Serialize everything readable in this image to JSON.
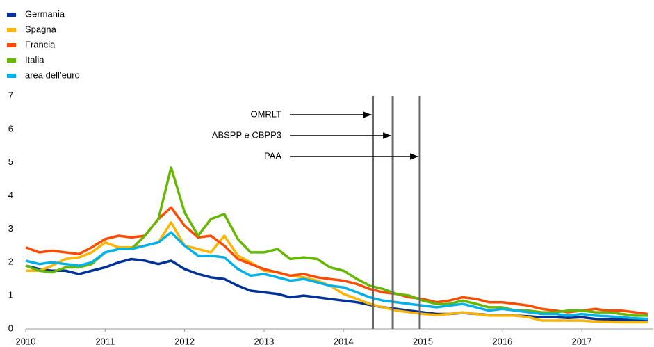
{
  "chart_data": {
    "type": "line",
    "x": [
      2010,
      2010.17,
      2010.33,
      2010.5,
      2010.67,
      2010.83,
      2011,
      2011.17,
      2011.33,
      2011.5,
      2011.67,
      2011.83,
      2012,
      2012.17,
      2012.33,
      2012.5,
      2012.67,
      2012.83,
      2013,
      2013.17,
      2013.33,
      2013.5,
      2013.67,
      2013.83,
      2014,
      2014.17,
      2014.33,
      2014.5,
      2014.67,
      2014.83,
      2015,
      2015.17,
      2015.33,
      2015.5,
      2015.67,
      2015.83,
      2016,
      2016.17,
      2016.33,
      2016.5,
      2016.67,
      2016.83,
      2017,
      2017.17,
      2017.33,
      2017.5,
      2017.67,
      2017.83
    ],
    "series": [
      {
        "name": "Germania",
        "color": "#003299",
        "values": [
          1.9,
          1.8,
          1.75,
          1.75,
          1.65,
          1.75,
          1.85,
          2.0,
          2.1,
          2.05,
          1.95,
          2.05,
          1.8,
          1.65,
          1.55,
          1.5,
          1.3,
          1.15,
          1.1,
          1.05,
          0.95,
          1.0,
          0.95,
          0.9,
          0.85,
          0.8,
          0.72,
          0.65,
          0.6,
          0.55,
          0.5,
          0.45,
          0.45,
          0.48,
          0.45,
          0.42,
          0.42,
          0.4,
          0.38,
          0.35,
          0.35,
          0.33,
          0.35,
          0.3,
          0.28,
          0.28,
          0.25,
          0.25
        ]
      },
      {
        "name": "Spagna",
        "color": "#ffb400",
        "values": [
          1.75,
          1.75,
          1.9,
          2.1,
          2.15,
          2.3,
          2.6,
          2.45,
          2.45,
          2.5,
          2.6,
          3.2,
          2.5,
          2.4,
          2.3,
          2.8,
          2.2,
          2.0,
          1.75,
          1.7,
          1.6,
          1.55,
          1.45,
          1.3,
          1.05,
          0.9,
          0.75,
          0.65,
          0.55,
          0.5,
          0.45,
          0.42,
          0.45,
          0.5,
          0.45,
          0.4,
          0.4,
          0.4,
          0.35,
          0.25,
          0.25,
          0.25,
          0.25,
          0.22,
          0.22,
          0.2,
          0.2,
          0.2
        ]
      },
      {
        "name": "Francia",
        "color": "#ff4b00",
        "values": [
          2.45,
          2.3,
          2.35,
          2.3,
          2.25,
          2.45,
          2.7,
          2.8,
          2.75,
          2.8,
          3.3,
          3.65,
          3.1,
          2.75,
          2.8,
          2.5,
          2.1,
          1.95,
          1.8,
          1.7,
          1.6,
          1.65,
          1.55,
          1.5,
          1.45,
          1.35,
          1.2,
          1.1,
          1.05,
          0.95,
          0.9,
          0.8,
          0.85,
          0.95,
          0.9,
          0.8,
          0.8,
          0.75,
          0.7,
          0.6,
          0.55,
          0.5,
          0.55,
          0.6,
          0.55,
          0.55,
          0.5,
          0.45
        ]
      },
      {
        "name": "Italia",
        "color": "#65b800",
        "values": [
          1.9,
          1.75,
          1.7,
          1.85,
          1.85,
          1.95,
          2.3,
          2.4,
          2.4,
          2.8,
          3.3,
          4.85,
          3.5,
          2.8,
          3.3,
          3.45,
          2.7,
          2.3,
          2.3,
          2.4,
          2.1,
          2.15,
          2.1,
          1.85,
          1.75,
          1.5,
          1.3,
          1.2,
          1.05,
          1.0,
          0.85,
          0.75,
          0.75,
          0.85,
          0.75,
          0.65,
          0.65,
          0.55,
          0.55,
          0.5,
          0.5,
          0.55,
          0.55,
          0.5,
          0.5,
          0.45,
          0.4,
          0.4
        ]
      },
      {
        "name": "area dell’euro",
        "color": "#00b1ea",
        "values": [
          2.05,
          1.95,
          2.0,
          1.95,
          1.9,
          2.0,
          2.3,
          2.4,
          2.4,
          2.5,
          2.6,
          2.9,
          2.5,
          2.2,
          2.2,
          2.15,
          1.8,
          1.6,
          1.65,
          1.55,
          1.45,
          1.5,
          1.4,
          1.3,
          1.25,
          1.1,
          0.95,
          0.85,
          0.8,
          0.75,
          0.7,
          0.65,
          0.7,
          0.75,
          0.65,
          0.55,
          0.6,
          0.55,
          0.5,
          0.45,
          0.45,
          0.4,
          0.45,
          0.4,
          0.38,
          0.35,
          0.32,
          0.3
        ]
      }
    ],
    "events": [
      {
        "label": "OMRLT",
        "x": 2014.37
      },
      {
        "label": "ABSPP e CBPP3",
        "x": 2014.62
      },
      {
        "label": "PAA",
        "x": 2014.96
      }
    ],
    "xlim": [
      2010,
      2017.9
    ],
    "xticks": [
      2010,
      2011,
      2012,
      2013,
      2014,
      2015,
      2016,
      2017
    ],
    "ylim": [
      0,
      7
    ],
    "yticks": [
      0,
      1,
      2,
      3,
      4,
      5,
      6,
      7
    ],
    "legend": "top-left",
    "grid": false
  }
}
